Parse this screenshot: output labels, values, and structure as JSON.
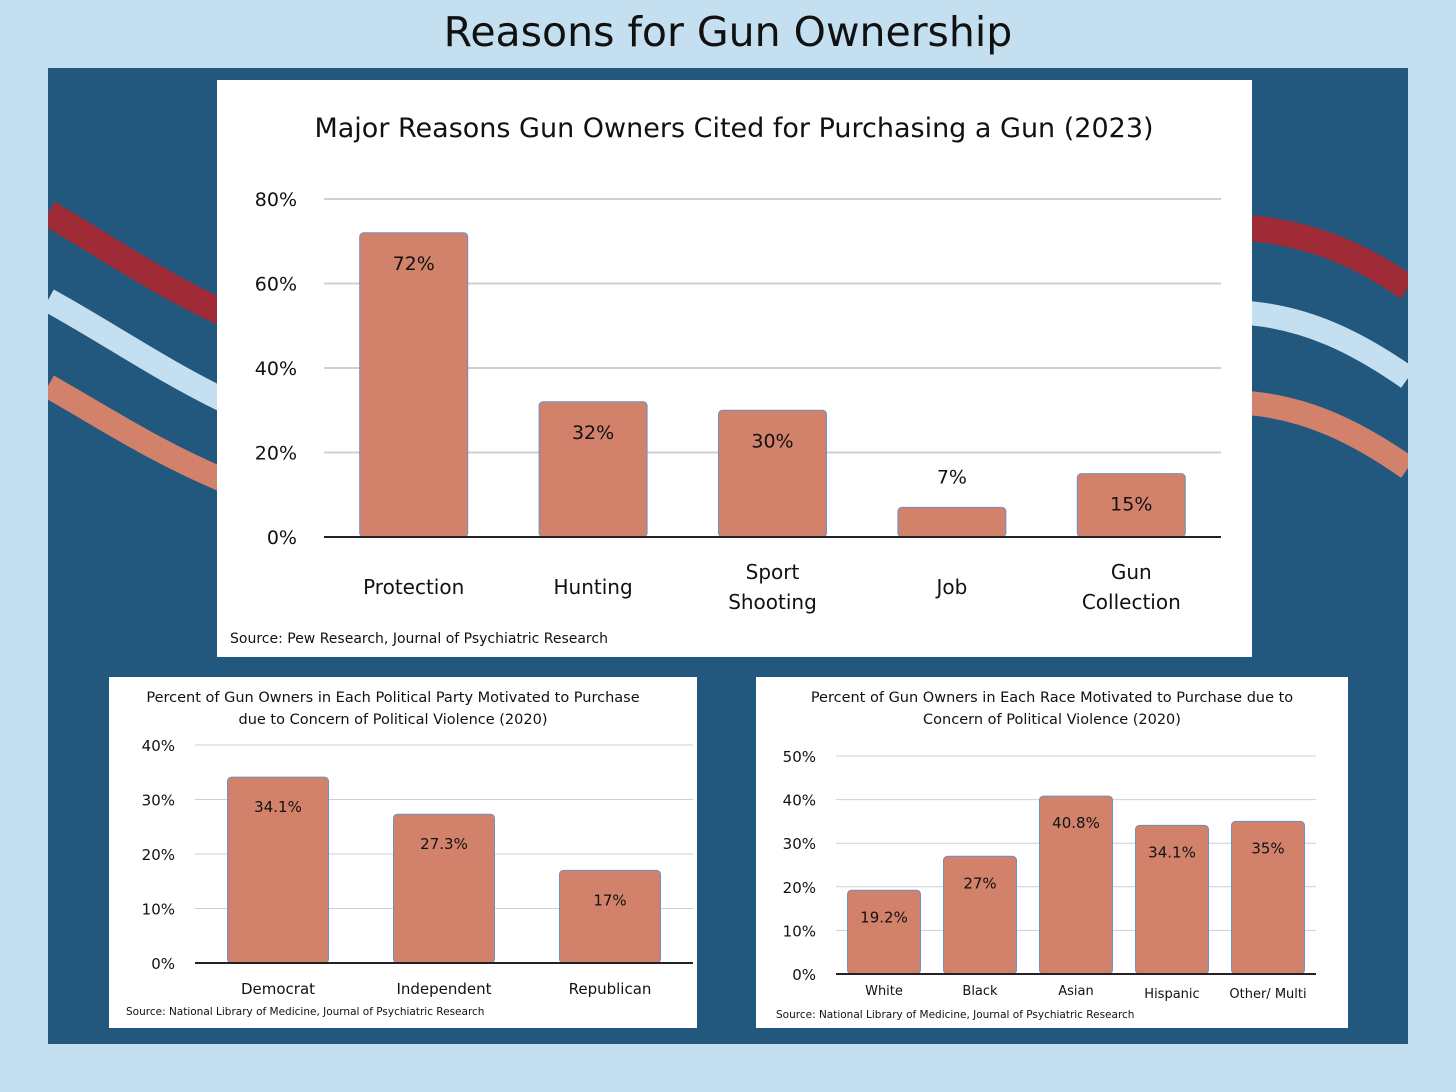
{
  "page": {
    "title": "Reasons for Gun Ownership"
  },
  "colors": {
    "background": "#c4dfef",
    "board": "#22577e",
    "bar": "#d2826a",
    "wave_red": "#9e2b35",
    "wave_light": "#c4dfef",
    "wave_orange": "#d2826a"
  },
  "chart_data": [
    {
      "type": "bar",
      "title": "Major Reasons Gun Owners Cited for Purchasing a Gun (2023)",
      "categories": [
        [
          "Protection"
        ],
        [
          "Hunting"
        ],
        [
          "Sport",
          "Shooting"
        ],
        [
          "Job"
        ],
        [
          "Gun",
          "Collection"
        ]
      ],
      "values": [
        72,
        32,
        30,
        7,
        15
      ],
      "value_labels": [
        "72%",
        "32%",
        "30%",
        "7%",
        "15%"
      ],
      "yticks": [
        "0%",
        "20%",
        "40%",
        "60%",
        "80%"
      ],
      "ylim": [
        0,
        80
      ],
      "grid": true,
      "source": "Source: Pew Research, Journal of Psychiatric Research"
    },
    {
      "type": "bar",
      "title": [
        "Percent of Gun Owners in Each Political Party Motivated to Purchase",
        "due to Concern of Political Violence (2020)"
      ],
      "categories": [
        [
          "Democrat"
        ],
        [
          "Independent"
        ],
        [
          "Republican"
        ]
      ],
      "values": [
        34.1,
        27.3,
        17
      ],
      "value_labels": [
        "34.1%",
        "27.3%",
        "17%"
      ],
      "yticks": [
        "0%",
        "10%",
        "20%",
        "30%",
        "40%"
      ],
      "ylim": [
        0,
        40
      ],
      "grid": true,
      "source": "Source: National Library of Medicine, Journal of Psychiatric Research"
    },
    {
      "type": "bar",
      "title": [
        "Percent of Gun Owners in Each Race Motivated to Purchase due to",
        "Concern of Political Violence (2020)"
      ],
      "categories": [
        [
          "White"
        ],
        [
          "Black"
        ],
        [
          "Asian"
        ],
        [
          "Hispanic"
        ],
        [
          "Other/ Multi"
        ]
      ],
      "values": [
        19.2,
        27,
        40.8,
        34.1,
        35
      ],
      "value_labels": [
        "19.2%",
        "27%",
        "40.8%",
        "34.1%",
        "35%"
      ],
      "yticks": [
        "0%",
        "10%",
        "20%",
        "30%",
        "40%",
        "50%"
      ],
      "ylim": [
        0,
        50
      ],
      "grid": true,
      "source": "Source: National Library of Medicine, Journal of Psychiatric Research"
    }
  ]
}
